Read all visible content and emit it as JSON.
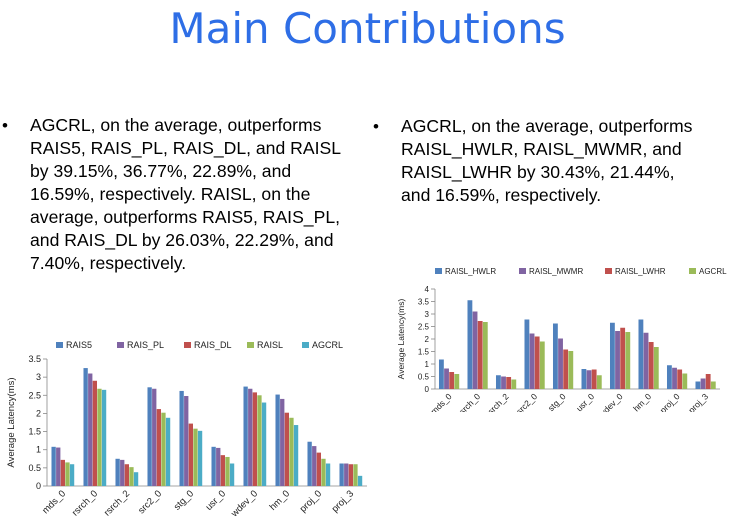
{
  "slide": {
    "title": "Main Contributions",
    "bullets": [
      {
        "marker": "•",
        "text": "AGCRL, on the average, outperforms RAIS5, RAIS_PL, RAIS_DL, and RAISL by 39.15%, 36.77%, 22.89%, and 16.59%, respectively. RAISL, on the average, outperforms RAIS5, RAIS_PL, and RAIS_DL by 26.03%, 22.29%, and 7.40%, respectively."
      },
      {
        "marker": "•",
        "text": "AGCRL, on the average, outperforms RAISL_HWLR, RAISL_MWMR, and RAISL_LWHR by 30.43%, 21.44%, and 16.59%, respectively."
      }
    ]
  },
  "chart_data": [
    {
      "type": "bar",
      "title": "",
      "xlabel": "",
      "ylabel": "Average Latency(ms)",
      "ylim": [
        0,
        3.5
      ],
      "yticks": [
        "0",
        "0.5",
        "1",
        "1.5",
        "2",
        "2.5",
        "3",
        "3.5"
      ],
      "legend_position": "top",
      "categories": [
        "mds_0",
        "rsrch_0",
        "rsrch_2",
        "src2_0",
        "stg_0",
        "usr_0",
        "wdev_0",
        "hm_0",
        "proj_0",
        "proj_3"
      ],
      "series": [
        {
          "name": "RAIS5",
          "color": "#4f81bd",
          "values": [
            1.08,
            3.25,
            0.75,
            2.72,
            2.62,
            1.08,
            2.74,
            2.52,
            1.22,
            0.62
          ]
        },
        {
          "name": "RAIS_PL",
          "color": "#8064a2",
          "values": [
            1.06,
            3.1,
            0.72,
            2.68,
            2.48,
            1.05,
            2.68,
            2.4,
            1.1,
            0.62
          ]
        },
        {
          "name": "RAIS_DL",
          "color": "#c0504d",
          "values": [
            0.72,
            2.9,
            0.6,
            2.12,
            1.72,
            0.85,
            2.58,
            2.02,
            0.92,
            0.6
          ]
        },
        {
          "name": "RAISL",
          "color": "#9bbb59",
          "values": [
            0.65,
            2.68,
            0.52,
            2.02,
            1.58,
            0.8,
            2.5,
            1.88,
            0.75,
            0.6
          ]
        },
        {
          "name": "AGCRL",
          "color": "#4bacc6",
          "values": [
            0.6,
            2.65,
            0.38,
            1.88,
            1.52,
            0.62,
            2.3,
            1.68,
            0.62,
            0.28
          ]
        }
      ]
    },
    {
      "type": "bar",
      "title": "",
      "xlabel": "",
      "ylabel": "Average Latency(ms)",
      "ylim": [
        0,
        4
      ],
      "yticks": [
        "0",
        "0.5",
        "1",
        "1.5",
        "2",
        "2.5",
        "3",
        "3.5",
        "4"
      ],
      "legend_position": "top",
      "categories": [
        "mds_0",
        "rsrch_0",
        "rsrch_2",
        "src2_0",
        "stg_0",
        "usr_0",
        "wdev_0",
        "hm_0",
        "proj_0",
        "proj_3"
      ],
      "series": [
        {
          "name": "RAISL_HWLR",
          "color": "#4f81bd",
          "values": [
            1.18,
            3.55,
            0.55,
            2.78,
            2.62,
            0.8,
            2.65,
            2.78,
            0.95,
            0.3
          ]
        },
        {
          "name": "RAISL_MWMR",
          "color": "#8064a2",
          "values": [
            0.82,
            3.1,
            0.5,
            2.22,
            2.02,
            0.75,
            2.32,
            2.25,
            0.85,
            0.42
          ]
        },
        {
          "name": "RAISL_LWHR",
          "color": "#c0504d",
          "values": [
            0.68,
            2.72,
            0.48,
            2.1,
            1.58,
            0.78,
            2.45,
            1.88,
            0.78,
            0.6
          ]
        },
        {
          "name": "AGCRL",
          "color": "#9bbb59",
          "values": [
            0.6,
            2.68,
            0.38,
            1.9,
            1.52,
            0.55,
            2.28,
            1.68,
            0.62,
            0.3
          ]
        }
      ]
    }
  ]
}
